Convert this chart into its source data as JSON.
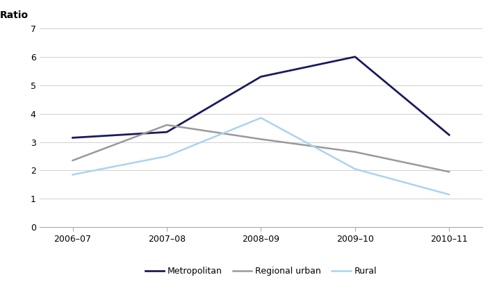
{
  "x_labels": [
    "2006–07",
    "2007–08",
    "2008–09",
    "2009–10",
    "2010–11"
  ],
  "x_values": [
    0,
    1,
    2,
    3,
    4
  ],
  "series": [
    {
      "name": "Metropolitan",
      "values": [
        3.15,
        3.35,
        5.3,
        6.0,
        3.25
      ],
      "color": "#1a1a5e",
      "linewidth": 2.0
    },
    {
      "name": "Regional urban",
      "values": [
        2.35,
        3.6,
        3.1,
        2.65,
        1.95
      ],
      "color": "#999999",
      "linewidth": 1.8
    },
    {
      "name": "Rural",
      "values": [
        1.85,
        2.5,
        3.85,
        2.05,
        1.15
      ],
      "color": "#aad4ee",
      "linewidth": 1.8
    }
  ],
  "ratio_label": "Ratio",
  "ylim": [
    0,
    7
  ],
  "yticks": [
    0,
    1,
    2,
    3,
    4,
    5,
    6,
    7
  ],
  "background_color": "#ffffff",
  "grid_color": "#d0d0d0",
  "axis_fontsize": 9,
  "label_fontsize": 10,
  "legend_fontsize": 9
}
